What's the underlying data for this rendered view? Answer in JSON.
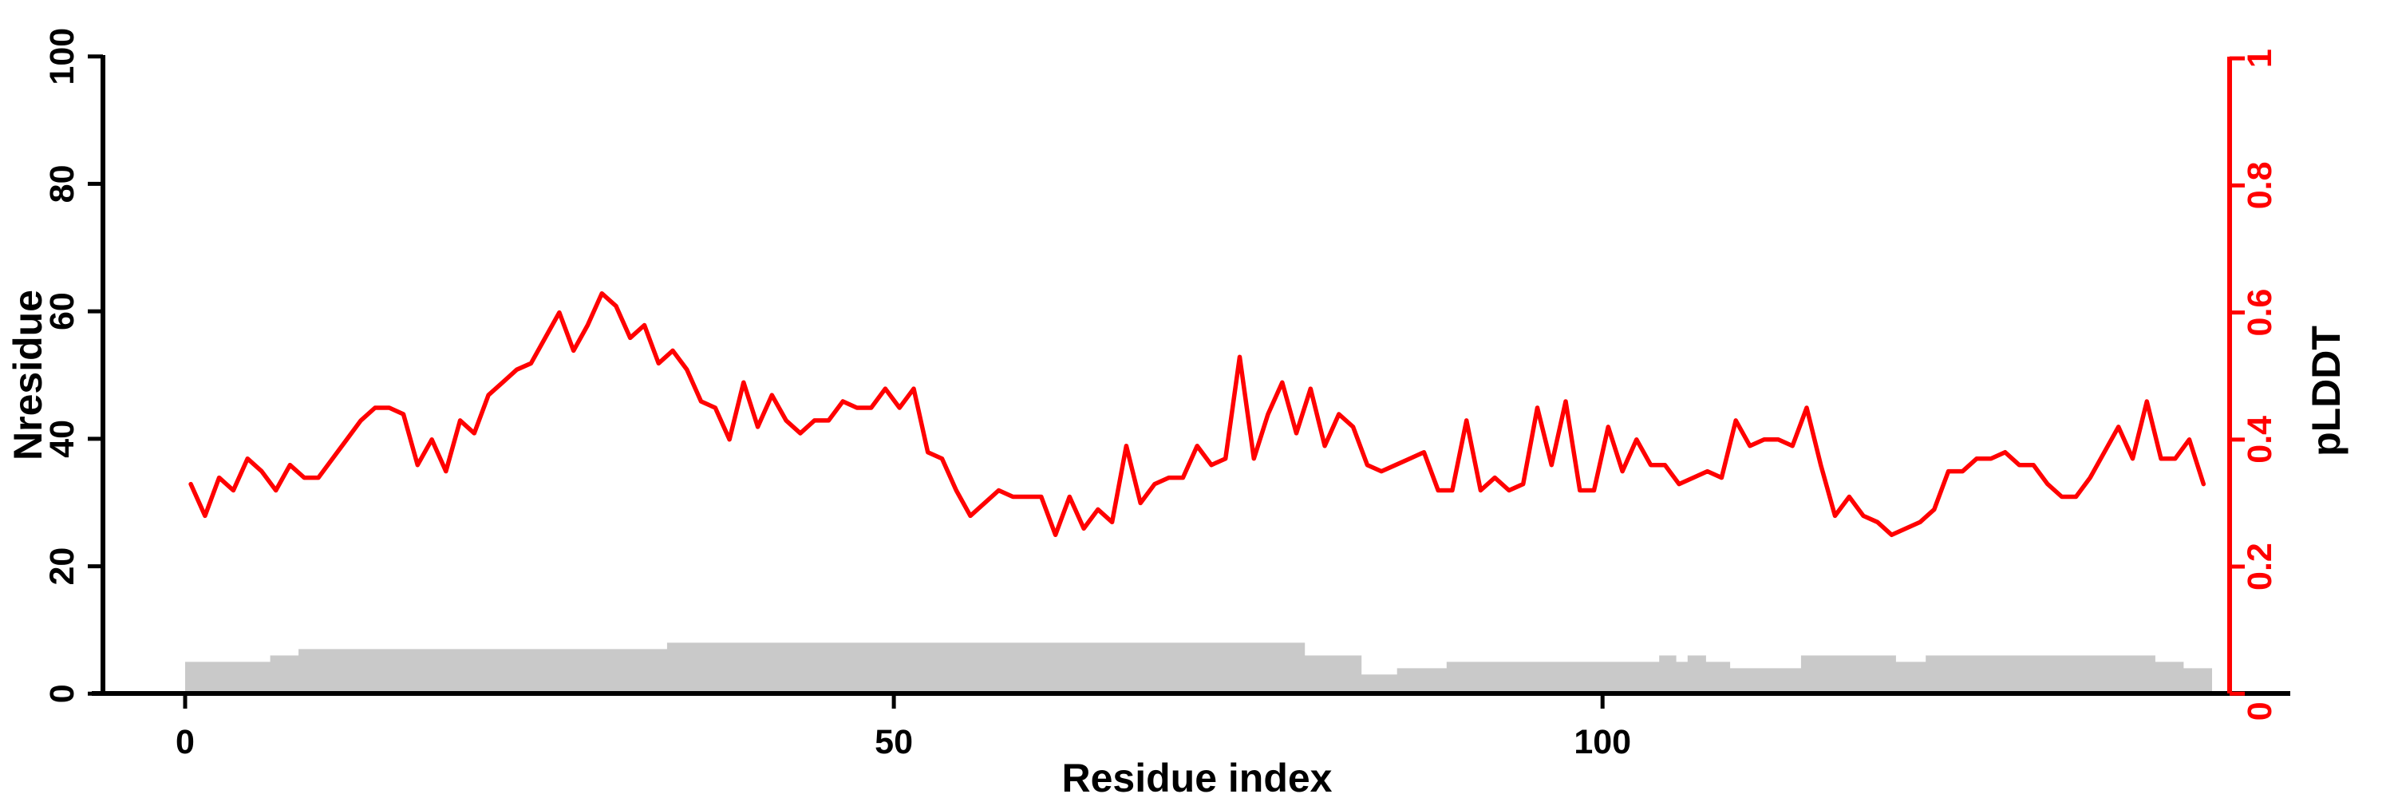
{
  "figure": {
    "background": "#ffffff",
    "xlabel": "Residue index",
    "ylabel_left": "Nresidue",
    "ylabel_right": "pLDDT",
    "line_color": "#ff0000",
    "area_color": "#c9c9c9",
    "axis_color_left": "#000000",
    "axis_color_right": "#ff0000"
  },
  "chart_data": {
    "type": "line",
    "title": "",
    "xlabel": "Residue index",
    "ylabel_left": "Nresidue",
    "ylabel_right": "pLDDT",
    "x_ticks": [
      0,
      50,
      100
    ],
    "left_axis": {
      "label": "Nresidue",
      "ticks": [
        0,
        20,
        40,
        60,
        80,
        100
      ],
      "range": [
        0,
        100
      ]
    },
    "right_axis": {
      "label": "pLDDT",
      "ticks": [
        0,
        0.2,
        0.4,
        0.6,
        0.8,
        1
      ],
      "range": [
        0,
        1
      ]
    },
    "x_range_residues": [
      0,
      144.2
    ],
    "grid": false,
    "legend": "none",
    "series": [
      {
        "name": "pLDDT",
        "type": "line",
        "axis": "right",
        "color": "#ff0000",
        "x_start": 0.4,
        "x_step": 1,
        "values": [
          0.33,
          0.28,
          0.34,
          0.32,
          0.37,
          0.35,
          0.32,
          0.36,
          0.34,
          0.34,
          0.37,
          0.4,
          0.43,
          0.45,
          0.45,
          0.44,
          0.36,
          0.4,
          0.35,
          0.43,
          0.41,
          0.47,
          0.49,
          0.51,
          0.52,
          0.56,
          0.6,
          0.54,
          0.58,
          0.63,
          0.61,
          0.56,
          0.58,
          0.52,
          0.54,
          0.51,
          0.46,
          0.45,
          0.4,
          0.49,
          0.42,
          0.47,
          0.43,
          0.41,
          0.43,
          0.43,
          0.46,
          0.45,
          0.45,
          0.48,
          0.45,
          0.48,
          0.38,
          0.37,
          0.32,
          0.28,
          0.3,
          0.32,
          0.31,
          0.31,
          0.31,
          0.25,
          0.31,
          0.26,
          0.29,
          0.27,
          0.39,
          0.3,
          0.33,
          0.34,
          0.34,
          0.39,
          0.36,
          0.37,
          0.53,
          0.37,
          0.44,
          0.49,
          0.41,
          0.48,
          0.39,
          0.44,
          0.42,
          0.36,
          0.35,
          0.36,
          0.37,
          0.38,
          0.32,
          0.32,
          0.43,
          0.32,
          0.34,
          0.32,
          0.33,
          0.45,
          0.36,
          0.46,
          0.32,
          0.32,
          0.42,
          0.35,
          0.4,
          0.36,
          0.36,
          0.33,
          0.34,
          0.35,
          0.34,
          0.43,
          0.39,
          0.4,
          0.4,
          0.39,
          0.45,
          0.36,
          0.28,
          0.31,
          0.28,
          0.27,
          0.25,
          0.26,
          0.27,
          0.29,
          0.35,
          0.35,
          0.37,
          0.37,
          0.38,
          0.36,
          0.36,
          0.33,
          0.31,
          0.31,
          0.34,
          0.38,
          0.42,
          0.37,
          0.46,
          0.37,
          0.37,
          0.4,
          0.33
        ]
      },
      {
        "name": "Nresidue",
        "type": "step-area",
        "axis": "left",
        "color": "#c9c9c9",
        "steps": [
          {
            "from": 0,
            "to": 6,
            "value": 5
          },
          {
            "from": 6,
            "to": 8,
            "value": 6
          },
          {
            "from": 8,
            "to": 34,
            "value": 7
          },
          {
            "from": 34,
            "to": 79,
            "value": 8
          },
          {
            "from": 79,
            "to": 83,
            "value": 6
          },
          {
            "from": 83,
            "to": 85.5,
            "value": 3
          },
          {
            "from": 85.5,
            "to": 89,
            "value": 4
          },
          {
            "from": 89,
            "to": 104,
            "value": 5
          },
          {
            "from": 104,
            "to": 105.2,
            "value": 6
          },
          {
            "from": 105.2,
            "to": 106,
            "value": 5
          },
          {
            "from": 106,
            "to": 107.3,
            "value": 6
          },
          {
            "from": 107.3,
            "to": 109,
            "value": 5
          },
          {
            "from": 109,
            "to": 114,
            "value": 4
          },
          {
            "from": 114,
            "to": 120.7,
            "value": 6
          },
          {
            "from": 120.7,
            "to": 122.8,
            "value": 5
          },
          {
            "from": 122.8,
            "to": 139,
            "value": 6
          },
          {
            "from": 139,
            "to": 141,
            "value": 5
          },
          {
            "from": 141,
            "to": 143,
            "value": 4
          }
        ]
      }
    ]
  }
}
